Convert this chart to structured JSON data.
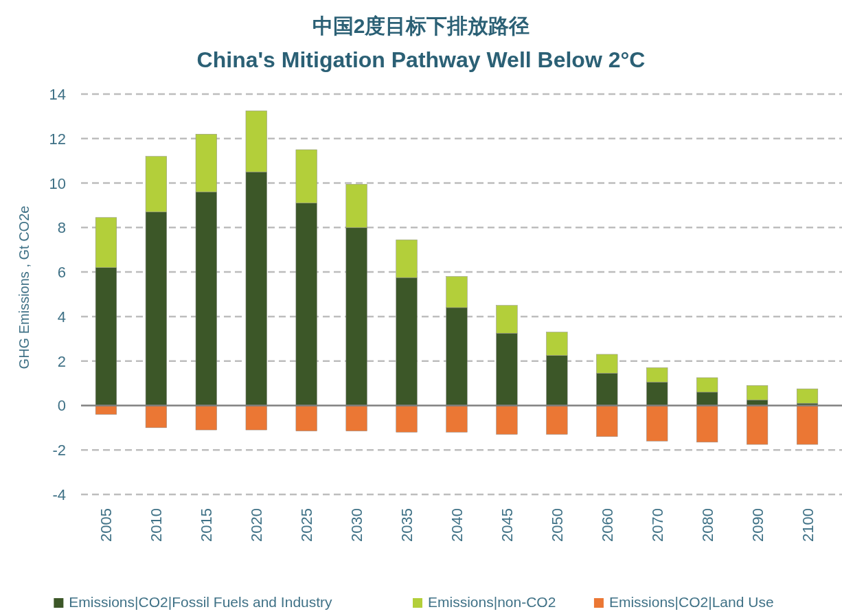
{
  "chart_data": {
    "type": "bar",
    "title": "中国2度目标下排放路径",
    "subtitle": "China's Mitigation Pathway Well Below 2°C",
    "ylabel": "GHG Emissions , Gt CO2e",
    "categories": [
      "2005",
      "2010",
      "2015",
      "2020",
      "2025",
      "2030",
      "2035",
      "2040",
      "2045",
      "2050",
      "2060",
      "2070",
      "2080",
      "2090",
      "2100"
    ],
    "stacked": true,
    "ylim": [
      -4,
      14
    ],
    "yticks": [
      -4,
      -2,
      0,
      2,
      4,
      6,
      8,
      10,
      12,
      14
    ],
    "grid": "y",
    "legend": "bottom",
    "series": [
      {
        "name": "Emissions|CO2|Fossil Fuels and Industry",
        "color": "#3c5728",
        "values": [
          6.2,
          8.7,
          9.6,
          10.5,
          9.1,
          8.0,
          5.75,
          4.4,
          3.25,
          2.25,
          1.45,
          1.05,
          0.6,
          0.25,
          0.1
        ]
      },
      {
        "name": "Emissions|non-CO2",
        "color": "#b3cf3a",
        "values": [
          2.25,
          2.5,
          2.6,
          2.75,
          2.4,
          1.95,
          1.7,
          1.4,
          1.25,
          1.05,
          0.85,
          0.65,
          0.65,
          0.65,
          0.65
        ]
      },
      {
        "name": "Emissions|CO2|Land Use",
        "color": "#eb7734",
        "values": [
          -0.4,
          -1.0,
          -1.1,
          -1.1,
          -1.15,
          -1.15,
          -1.2,
          -1.2,
          -1.3,
          -1.3,
          -1.4,
          -1.6,
          -1.65,
          -1.75,
          -1.75
        ]
      }
    ]
  }
}
